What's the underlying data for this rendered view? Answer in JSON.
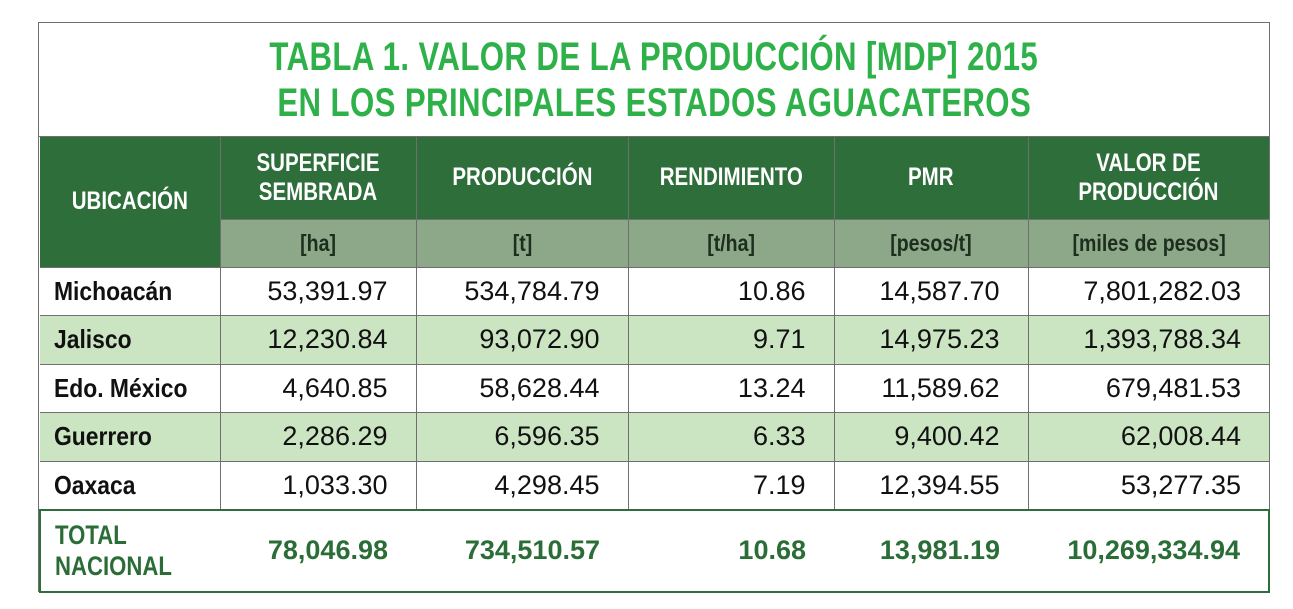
{
  "title": {
    "line1": "TABLA 1. VALOR DE LA PRODUCCIÓN [MDP] 2015",
    "line2": "EN LOS PRINCIPALES ESTADOS AGUACATEROS"
  },
  "colors": {
    "title_green": "#2fb14a",
    "header_green": "#2d6e3a",
    "units_green": "#8da888",
    "alt_row_green": "#cbe5c3",
    "total_text_green": "#2a6d37"
  },
  "header": {
    "ubicacion": "UBICACIÓN",
    "superficie_l1": "SUPERFICIE",
    "superficie_l2": "SEMBRADA",
    "produccion": "PRODUCCIÓN",
    "rendimiento": "RENDIMIENTO",
    "pmr": "PMR",
    "valor_l1": "VALOR DE",
    "valor_l2": "PRODUCCIÓN"
  },
  "units": {
    "superficie": "[ha]",
    "produccion": "[t]",
    "rendimiento": "[t/ha]",
    "pmr": "[pesos/t]",
    "valor": "[miles de pesos]"
  },
  "rows": [
    {
      "ubicacion": "Michoacán",
      "superficie": "53,391.97",
      "produccion": "534,784.79",
      "rendimiento": "10.86",
      "pmr": "14,587.70",
      "valor": "7,801,282.03"
    },
    {
      "ubicacion": "Jalisco",
      "superficie": "12,230.84",
      "produccion": "93,072.90",
      "rendimiento": "9.71",
      "pmr": "14,975.23",
      "valor": "1,393,788.34"
    },
    {
      "ubicacion": "Edo. México",
      "superficie": "4,640.85",
      "produccion": "58,628.44",
      "rendimiento": "13.24",
      "pmr": "11,589.62",
      "valor": "679,481.53"
    },
    {
      "ubicacion": "Guerrero",
      "superficie": "2,286.29",
      "produccion": "6,596.35",
      "rendimiento": "6.33",
      "pmr": "9,400.42",
      "valor": "62,008.44"
    },
    {
      "ubicacion": "Oaxaca",
      "superficie": "1,033.30",
      "produccion": "4,298.45",
      "rendimiento": "7.19",
      "pmr": "12,394.55",
      "valor": "53,277.35"
    }
  ],
  "total": {
    "label_l1": "TOTAL",
    "label_l2": "NACIONAL",
    "superficie": "78,046.98",
    "produccion": "734,510.57",
    "rendimiento": "10.68",
    "pmr": "13,981.19",
    "valor": "10,269,334.94"
  }
}
